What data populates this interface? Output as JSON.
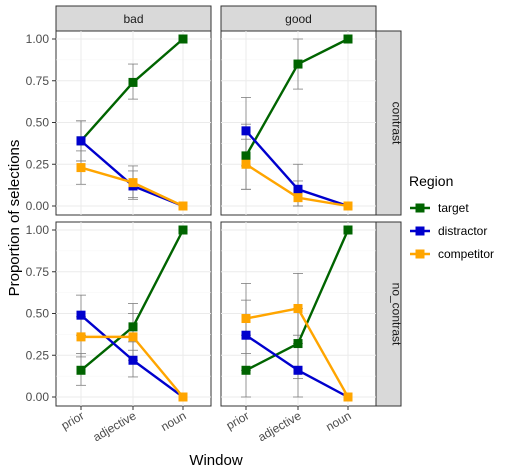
{
  "chart_data": {
    "type": "line",
    "facet_columns": [
      "bad",
      "good"
    ],
    "facet_rows": [
      "contrast",
      "no_contrast"
    ],
    "x": [
      "prior",
      "adjective",
      "noun"
    ],
    "xlabel": "Window",
    "ylabel": "Proportion of selections",
    "ylim": [
      0,
      1
    ],
    "yticks": [
      "0.00",
      "0.25",
      "0.50",
      "0.75",
      "1.00"
    ],
    "legend": {
      "title": "Region",
      "position": "right",
      "entries": [
        "target",
        "distractor",
        "competitor"
      ]
    },
    "colors": {
      "target": "#006400",
      "distractor": "#0000cd",
      "competitor": "#ffa500",
      "errorbar": "#7f7f7f"
    },
    "grid": true,
    "panels": [
      {
        "column": "bad",
        "row": "contrast",
        "series": [
          {
            "name": "target",
            "values": [
              0.39,
              0.74,
              1.0
            ],
            "lower": [
              0.27,
              0.64,
              1.0
            ],
            "upper": [
              0.51,
              0.85,
              1.0
            ]
          },
          {
            "name": "distractor",
            "values": [
              0.39,
              0.12,
              0.0
            ],
            "lower": [
              0.27,
              0.04,
              0.0
            ],
            "upper": [
              0.51,
              0.21,
              0.0
            ]
          },
          {
            "name": "competitor",
            "values": [
              0.23,
              0.14,
              0.0
            ],
            "lower": [
              0.13,
              0.05,
              0.0
            ],
            "upper": [
              0.33,
              0.24,
              0.0
            ]
          }
        ]
      },
      {
        "column": "good",
        "row": "contrast",
        "series": [
          {
            "name": "target",
            "values": [
              0.3,
              0.85,
              1.0
            ],
            "lower": [
              0.1,
              0.7,
              1.0
            ],
            "upper": [
              0.49,
              1.0,
              1.0
            ]
          },
          {
            "name": "distractor",
            "values": [
              0.45,
              0.1,
              0.0
            ],
            "lower": [
              0.24,
              0.0,
              0.0
            ],
            "upper": [
              0.65,
              0.25,
              0.0
            ]
          },
          {
            "name": "competitor",
            "values": [
              0.25,
              0.05,
              0.0
            ],
            "lower": [
              0.1,
              0.0,
              0.0
            ],
            "upper": [
              0.4,
              0.15,
              0.0
            ]
          }
        ]
      },
      {
        "column": "bad",
        "row": "no_contrast",
        "series": [
          {
            "name": "target",
            "values": [
              0.16,
              0.42,
              1.0
            ],
            "lower": [
              0.07,
              0.28,
              1.0
            ],
            "upper": [
              0.26,
              0.56,
              1.0
            ]
          },
          {
            "name": "distractor",
            "values": [
              0.49,
              0.22,
              0.0
            ],
            "lower": [
              0.37,
              0.12,
              0.0
            ],
            "upper": [
              0.61,
              0.33,
              0.0
            ]
          },
          {
            "name": "competitor",
            "values": [
              0.36,
              0.36,
              0.0
            ],
            "lower": [
              0.24,
              0.22,
              0.0
            ],
            "upper": [
              0.48,
              0.5,
              0.0
            ]
          }
        ]
      },
      {
        "column": "good",
        "row": "no_contrast",
        "series": [
          {
            "name": "target",
            "values": [
              0.16,
              0.32,
              1.0
            ],
            "lower": [
              0.0,
              0.11,
              1.0
            ],
            "upper": [
              0.37,
              0.53,
              1.0
            ]
          },
          {
            "name": "distractor",
            "values": [
              0.37,
              0.16,
              0.0
            ],
            "lower": [
              0.16,
              0.0,
              0.0
            ],
            "upper": [
              0.58,
              0.37,
              0.0
            ]
          },
          {
            "name": "competitor",
            "values": [
              0.47,
              0.53,
              0.0
            ],
            "lower": [
              0.26,
              0.32,
              0.0
            ],
            "upper": [
              0.68,
              0.74,
              0.0
            ]
          }
        ]
      }
    ]
  }
}
